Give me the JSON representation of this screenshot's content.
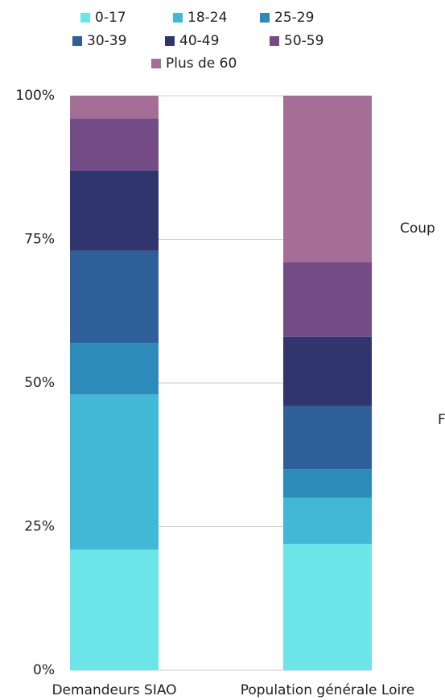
{
  "chart_data": {
    "type": "stacked_bar",
    "categories": [
      "Demandeurs SIAO",
      "Population générale Loire"
    ],
    "series": [
      {
        "name": "0-17",
        "color": "#6ce5e8",
        "values": [
          21,
          22
        ]
      },
      {
        "name": "18-24",
        "color": "#41b8d5",
        "values": [
          27,
          8
        ]
      },
      {
        "name": "25-29",
        "color": "#2d8bba",
        "values": [
          9,
          5
        ]
      },
      {
        "name": "30-39",
        "color": "#2f5f98",
        "values": [
          16,
          11
        ]
      },
      {
        "name": "40-49",
        "color": "#31356e",
        "values": [
          14,
          12
        ]
      },
      {
        "name": "50-59",
        "color": "#734b85",
        "values": [
          9,
          13
        ]
      },
      {
        "name": "Plus de 60",
        "color": "#a56e96",
        "values": [
          4,
          29
        ]
      }
    ],
    "ylim": [
      0,
      100
    ],
    "yticks": [
      {
        "value": 0,
        "label": "0%"
      },
      {
        "value": 25,
        "label": "25%"
      },
      {
        "value": 50,
        "label": "50%"
      },
      {
        "value": 75,
        "label": "75%"
      },
      {
        "value": 100,
        "label": "100%"
      }
    ],
    "grid": true,
    "legend": "top",
    "annotations": [
      "Coup",
      "F"
    ]
  }
}
